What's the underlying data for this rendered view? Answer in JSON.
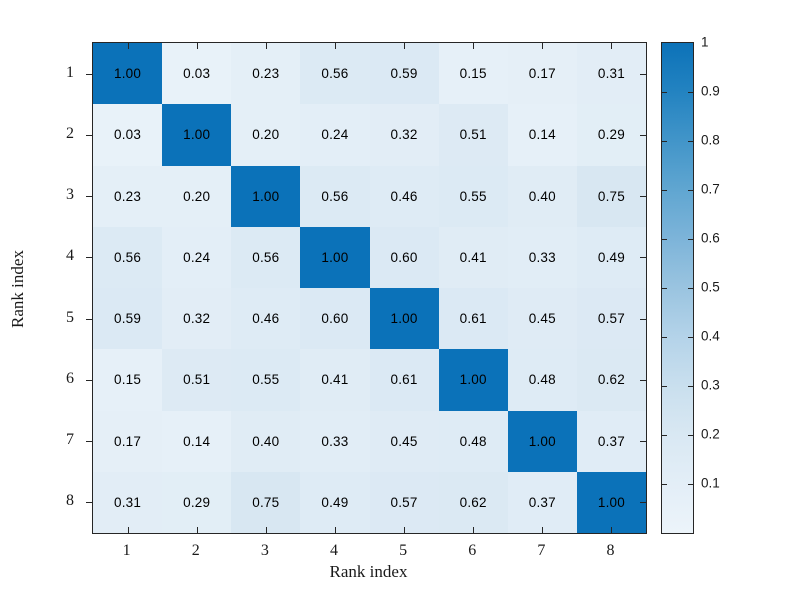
{
  "figure": {
    "background": "#ffffff",
    "axis_color": "#262626",
    "text_color": "#000000"
  },
  "chart_data": {
    "type": "heatmap",
    "title": "",
    "xlabel": "Rank index",
    "ylabel": "Rank index",
    "x_categories": [
      "1",
      "2",
      "3",
      "4",
      "5",
      "6",
      "7",
      "8"
    ],
    "y_categories": [
      "1",
      "2",
      "3",
      "4",
      "5",
      "6",
      "7",
      "8"
    ],
    "matrix": [
      [
        1.0,
        0.03,
        0.23,
        0.56,
        0.59,
        0.15,
        0.17,
        0.31
      ],
      [
        0.03,
        1.0,
        0.2,
        0.24,
        0.32,
        0.51,
        0.14,
        0.29
      ],
      [
        0.23,
        0.2,
        1.0,
        0.56,
        0.46,
        0.55,
        0.4,
        0.75
      ],
      [
        0.56,
        0.24,
        0.56,
        1.0,
        0.6,
        0.41,
        0.33,
        0.49
      ],
      [
        0.59,
        0.32,
        0.46,
        0.6,
        1.0,
        0.61,
        0.45,
        0.57
      ],
      [
        0.15,
        0.51,
        0.55,
        0.41,
        0.61,
        1.0,
        0.48,
        0.62
      ],
      [
        0.17,
        0.14,
        0.4,
        0.33,
        0.45,
        0.48,
        1.0,
        0.37
      ],
      [
        0.31,
        0.29,
        0.75,
        0.49,
        0.57,
        0.62,
        0.37,
        1.0
      ]
    ],
    "value_decimals": 2,
    "grid": false,
    "box": true,
    "colorbar": {
      "position": "right",
      "range": [
        0,
        1
      ],
      "tick_values": [
        1,
        0.9,
        0.8,
        0.7,
        0.6,
        0.5,
        0.4,
        0.3,
        0.2,
        0.1
      ],
      "tick_labels": [
        "1",
        "0.9",
        "0.8",
        "0.7",
        "0.6",
        "0.5",
        "0.4",
        "0.3",
        "0.2",
        "0.1"
      ]
    },
    "colors": {
      "diagonal_cell": "#0b72b9",
      "cell_low": "#e9f2f9",
      "cell_high": "#d2e3f0",
      "gradient_stops_top_to_bottom": [
        "#0c72b8",
        "#2383c1",
        "#4295c9",
        "#60a6d1",
        "#7db4d9",
        "#9ac4e0",
        "#b4d3e9",
        "#c9dfee",
        "#d9e8f3",
        "#e3eef7",
        "#ecf4fa"
      ]
    }
  }
}
